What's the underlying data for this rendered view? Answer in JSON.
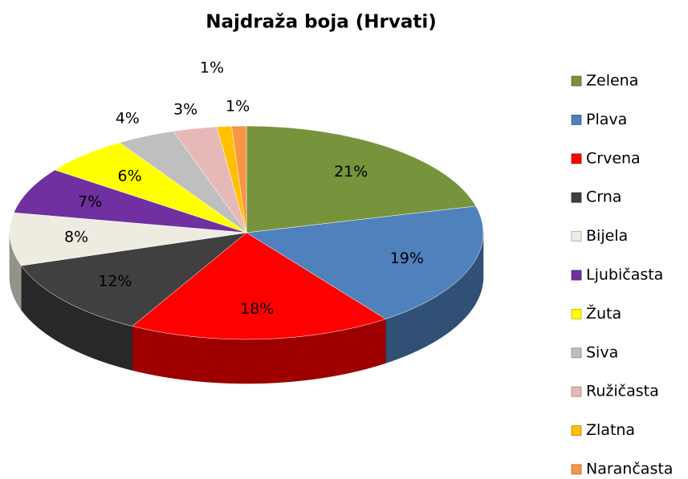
{
  "chart_data": {
    "type": "pie3d",
    "title": "Najdraža boja (Hrvati)",
    "categories": [
      "Zelena",
      "Plava",
      "Crvena",
      "Crna",
      "Bijela",
      "Ljubičasta",
      "Žuta",
      "Siva",
      "Ružičasta",
      "Zlatna",
      "Narančasta"
    ],
    "values": [
      21,
      19,
      18,
      12,
      8,
      7,
      6,
      4,
      3,
      1,
      1
    ],
    "value_labels": [
      "21%",
      "19%",
      "18%",
      "12%",
      "8%",
      "7%",
      "6%",
      "4%",
      "3%",
      "1%",
      "1%"
    ],
    "colors": [
      "#77933c",
      "#4f81bd",
      "#ff0000",
      "#404040",
      "#eeece1",
      "#7030a0",
      "#ffff00",
      "#bfbfbf",
      "#e6b9b8",
      "#ffc000",
      "#f79646"
    ],
    "legend": "right"
  }
}
